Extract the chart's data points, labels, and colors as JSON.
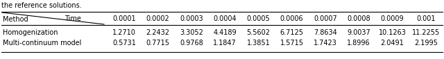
{
  "time_values": [
    "0.0001",
    "0.0002",
    "0.0003",
    "0.0004",
    "0.0005",
    "0.0006",
    "0.0007",
    "0.0008",
    "0.0009",
    "0.001"
  ],
  "methods": [
    "Homogenization",
    "Multi-continuum model"
  ],
  "row1": [
    "1.2710",
    "2.2432",
    "3.3052",
    "4.4189",
    "5.5602",
    "6.7125",
    "7.8634",
    "9.0037",
    "10.1263",
    "11.2255"
  ],
  "row2": [
    "0.5731",
    "0.7715",
    "0.9768",
    "1.1847",
    "1.3851",
    "1.5715",
    "1.7423",
    "1.8996",
    "2.0491",
    "2.1995"
  ],
  "col_header_time": "Time",
  "col_header_method": "Method",
  "bg_color": "#ffffff",
  "line_color": "#000000",
  "font_size": 7.0,
  "caption": "the reference solutions."
}
